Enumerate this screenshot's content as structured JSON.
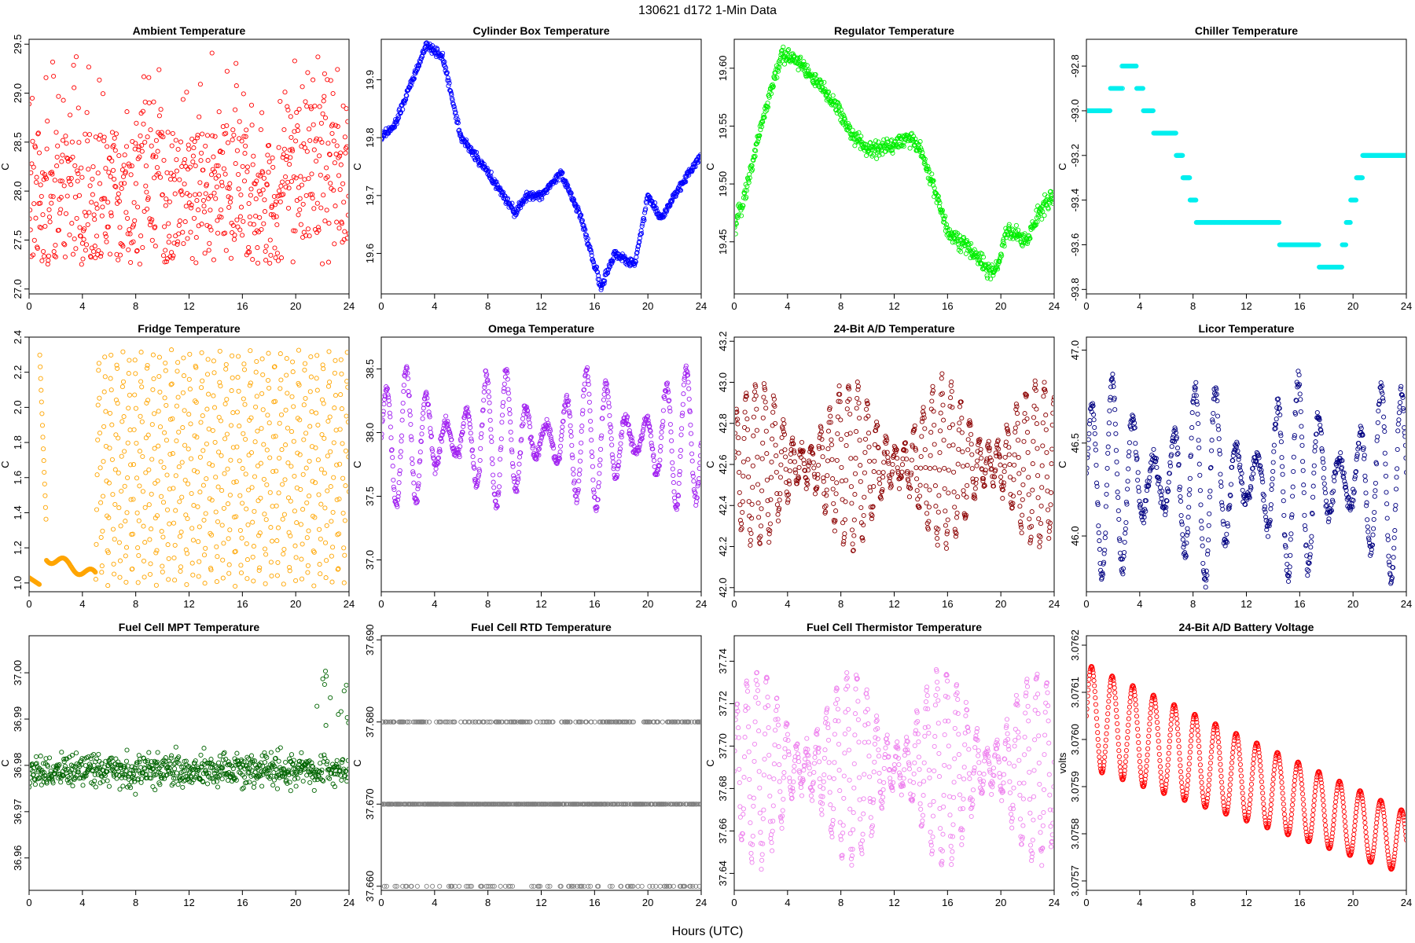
{
  "figure": {
    "title": "130621    d172    1-Min Data",
    "xlabel": "Hours (UTC)"
  },
  "chart_data": [
    {
      "type": "scatter",
      "title": "Ambient Temperature",
      "ylabel": "C",
      "color": "#ff0000",
      "xlim": [
        0,
        24
      ],
      "ylim": [
        26.95,
        29.55
      ],
      "xticks": [
        "0",
        "4",
        "8",
        "12",
        "16",
        "20",
        "24"
      ],
      "yticks": [
        "27.0",
        "27.5",
        "28.0",
        "28.5",
        "29.0",
        "29.5"
      ],
      "ytick_values": [
        27.0,
        27.5,
        28.0,
        28.5,
        29.0,
        29.5
      ],
      "ymin": 27.0,
      "ymax": 29.5,
      "pattern": "noisy"
    },
    {
      "type": "scatter",
      "title": "Cylinder Box Temperature",
      "ylabel": "C",
      "color": "#0000ff",
      "xlim": [
        0,
        24
      ],
      "ylim": [
        19.53,
        19.97
      ],
      "xticks": [
        "0",
        "4",
        "8",
        "12",
        "16",
        "20",
        "24"
      ],
      "yticks": [
        "19.6",
        "19.7",
        "19.8",
        "19.9"
      ],
      "ytick_values": [
        19.6,
        19.7,
        19.8,
        19.9
      ],
      "key_x": [
        0,
        1,
        2,
        3.4,
        4.6,
        6,
        8,
        10,
        11,
        12,
        13.5,
        15,
        16.5,
        17.5,
        19,
        20,
        21,
        22.5,
        24
      ],
      "key_y": [
        19.8,
        19.82,
        19.88,
        19.96,
        19.94,
        19.8,
        19.74,
        19.67,
        19.7,
        19.7,
        19.74,
        19.66,
        19.54,
        19.6,
        19.58,
        19.7,
        19.66,
        19.72,
        19.77
      ]
    },
    {
      "type": "scatter",
      "title": "Regulator Temperature",
      "ylabel": "C",
      "color": "#00ee00",
      "xlim": [
        0,
        24
      ],
      "ylim": [
        19.405,
        19.625
      ],
      "xticks": [
        "0",
        "4",
        "8",
        "12",
        "16",
        "20",
        "24"
      ],
      "yticks": [
        "19.45",
        "19.50",
        "19.55",
        "19.60"
      ],
      "ytick_values": [
        19.45,
        19.5,
        19.55,
        19.6
      ],
      "key_x": [
        0,
        1,
        2,
        3.5,
        4.5,
        6,
        7.5,
        9,
        10,
        11,
        13,
        14,
        16,
        17,
        18,
        19.5,
        20.5,
        22,
        23,
        24
      ],
      "key_y": [
        19.46,
        19.5,
        19.55,
        19.61,
        19.61,
        19.59,
        19.57,
        19.54,
        19.53,
        19.53,
        19.54,
        19.53,
        19.46,
        19.45,
        19.44,
        19.42,
        19.46,
        19.45,
        19.48,
        19.49
      ]
    },
    {
      "type": "scatter",
      "title": "Chiller Temperature",
      "ylabel": "C",
      "color": "#00eeee",
      "xlim": [
        0,
        24
      ],
      "ylim": [
        -93.82,
        -92.68
      ],
      "xticks": [
        "0",
        "4",
        "8",
        "12",
        "16",
        "20",
        "24"
      ],
      "yticks": [
        "-93.8",
        "-93.6",
        "-93.4",
        "-93.2",
        "-93.0",
        "-92.8"
      ],
      "ytick_values": [
        -93.8,
        -93.6,
        -93.4,
        -93.2,
        -93.0,
        -92.8
      ],
      "key_x": [
        0,
        1.5,
        2,
        3.5,
        4,
        4.5,
        5.5,
        6.5,
        7.5,
        8.5,
        10,
        12,
        14,
        15,
        16,
        17,
        18,
        19,
        20,
        21,
        22,
        24
      ],
      "key_y": [
        -93.0,
        -93.0,
        -92.9,
        -92.8,
        -92.9,
        -93.0,
        -93.1,
        -93.1,
        -93.3,
        -93.5,
        -93.5,
        -93.5,
        -93.5,
        -93.6,
        -93.6,
        -93.6,
        -93.7,
        -93.7,
        -93.4,
        -93.2,
        -93.2,
        -93.2
      ],
      "step": 0.1
    },
    {
      "type": "scatter",
      "title": "Fridge Temperature",
      "ylabel": "C",
      "color": "#ffa500",
      "xlim": [
        0,
        24
      ],
      "ylim": [
        0.95,
        2.4
      ],
      "xticks": [
        "0",
        "4",
        "8",
        "12",
        "16",
        "20",
        "24"
      ],
      "yticks": [
        "1.0",
        "1.2",
        "1.4",
        "1.6",
        "1.8",
        "2.0",
        "2.2",
        "2.4"
      ],
      "ytick_values": [
        1.0,
        1.2,
        1.4,
        1.6,
        1.8,
        2.0,
        2.2,
        2.4
      ],
      "pattern": "fridge"
    },
    {
      "type": "scatter",
      "title": "Omega Temperature",
      "ylabel": "C",
      "color": "#a020f0",
      "xlim": [
        0,
        24
      ],
      "ylim": [
        36.75,
        38.75
      ],
      "xticks": [
        "0",
        "4",
        "8",
        "12",
        "16",
        "20",
        "24"
      ],
      "yticks": [
        "37.0",
        "37.5",
        "38.0",
        "38.5"
      ],
      "ytick_values": [
        37.0,
        37.5,
        38.0,
        38.5
      ],
      "center": 37.95,
      "amp": 0.55,
      "period": 1.5
    },
    {
      "type": "scatter",
      "title": "24-Bit A/D Temperature",
      "ylabel": "C",
      "color": "#8b0000",
      "xlim": [
        0,
        24
      ],
      "ylim": [
        41.98,
        43.22
      ],
      "xticks": [
        "0",
        "4",
        "8",
        "12",
        "16",
        "20",
        "24"
      ],
      "yticks": [
        "42.0",
        "42.2",
        "42.4",
        "42.6",
        "42.8",
        "43.0",
        "43.2"
      ],
      "ytick_values": [
        42.0,
        42.2,
        42.4,
        42.6,
        42.8,
        43.0,
        43.2
      ],
      "center": 42.6,
      "amp": 0.4,
      "period": 0.7
    },
    {
      "type": "scatter",
      "title": "Licor Temperature",
      "ylabel": "C",
      "color": "#000080",
      "xlim": [
        0,
        24
      ],
      "ylim": [
        45.7,
        47.07
      ],
      "xticks": [
        "0",
        "4",
        "8",
        "12",
        "16",
        "20",
        "24"
      ],
      "yticks": [
        "46.0",
        "46.5",
        "47.0"
      ],
      "ytick_values": [
        46.0,
        46.5,
        47.0
      ],
      "center": 46.3,
      "amp": 0.55,
      "period": 1.55
    },
    {
      "type": "scatter",
      "title": "Fuel Cell MPT Temperature",
      "ylabel": "C",
      "color": "#006400",
      "xlim": [
        0,
        24
      ],
      "ylim": [
        36.953,
        37.008
      ],
      "xticks": [
        "0",
        "4",
        "8",
        "12",
        "16",
        "20",
        "24"
      ],
      "yticks": [
        "36.96",
        "36.97",
        "36.98",
        "36.99",
        "37.00"
      ],
      "ytick_values": [
        36.96,
        36.97,
        36.98,
        36.99,
        37.0
      ],
      "center": 36.979,
      "spread": 0.006
    },
    {
      "type": "scatter",
      "title": "Fuel Cell RTD Temperature",
      "ylabel": "C",
      "color": "#7f7f7f",
      "xlim": [
        0,
        24
      ],
      "ylim": [
        37.6595,
        37.6905
      ],
      "xticks": [
        "0",
        "4",
        "8",
        "12",
        "16",
        "20",
        "24"
      ],
      "yticks": [
        "37.660",
        "37.670",
        "37.680",
        "37.690"
      ],
      "ytick_values": [
        37.66,
        37.67,
        37.68,
        37.69
      ],
      "levels": [
        37.66,
        37.67,
        37.68
      ]
    },
    {
      "type": "scatter",
      "title": "Fuel Cell Thermistor Temperature",
      "ylabel": "C",
      "color": "#ee82ee",
      "xlim": [
        0,
        24
      ],
      "ylim": [
        37.632,
        37.752
      ],
      "xticks": [
        "0",
        "4",
        "8",
        "12",
        "16",
        "20",
        "24"
      ],
      "yticks": [
        "37.64",
        "37.66",
        "37.68",
        "37.70",
        "37.72",
        "37.74"
      ],
      "ytick_values": [
        37.64,
        37.66,
        37.68,
        37.7,
        37.72,
        37.74
      ],
      "center": 37.69,
      "amp": 0.045,
      "period": 0.75
    },
    {
      "type": "scatter",
      "title": "24-Bit A/D Battery Voltage",
      "ylabel": "volts",
      "color": "#ff0000",
      "xlim": [
        0,
        24
      ],
      "ylim": [
        3.07568,
        3.07622
      ],
      "xticks": [
        "0",
        "4",
        "8",
        "12",
        "16",
        "20",
        "24"
      ],
      "yticks": [
        "3.0757",
        "3.0758",
        "3.0759",
        "3.0760",
        "3.0761",
        "3.0762"
      ],
      "ytick_values": [
        3.0757,
        3.0758,
        3.0759,
        3.076,
        3.0761,
        3.0762
      ],
      "center_start": 3.07605,
      "center_end": 3.07578,
      "amp": 0.00011,
      "period": 1.55
    }
  ]
}
